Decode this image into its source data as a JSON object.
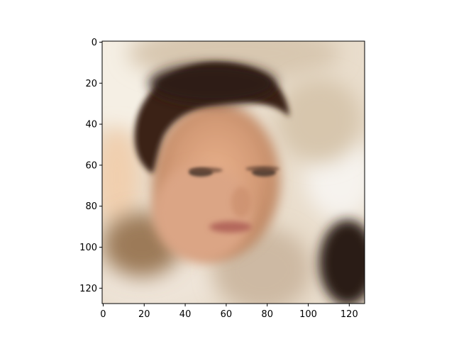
{
  "chart_data": {
    "type": "heatmap",
    "title": "",
    "xlabel": "",
    "ylabel": "",
    "image_shape": [
      128,
      128
    ],
    "xlim": [
      -0.5,
      127.5
    ],
    "ylim": [
      127.5,
      -0.5
    ],
    "y_inverted": true,
    "x_ticks": [
      0,
      20,
      40,
      60,
      80,
      100,
      120
    ],
    "y_ticks": [
      0,
      20,
      40,
      60,
      80,
      100,
      120
    ],
    "x_tick_labels": [
      "0",
      "20",
      "40",
      "60",
      "80",
      "100",
      "120"
    ],
    "y_tick_labels": [
      "0",
      "20",
      "40",
      "60",
      "80",
      "100",
      "120"
    ],
    "content": "blurry face portrait"
  }
}
